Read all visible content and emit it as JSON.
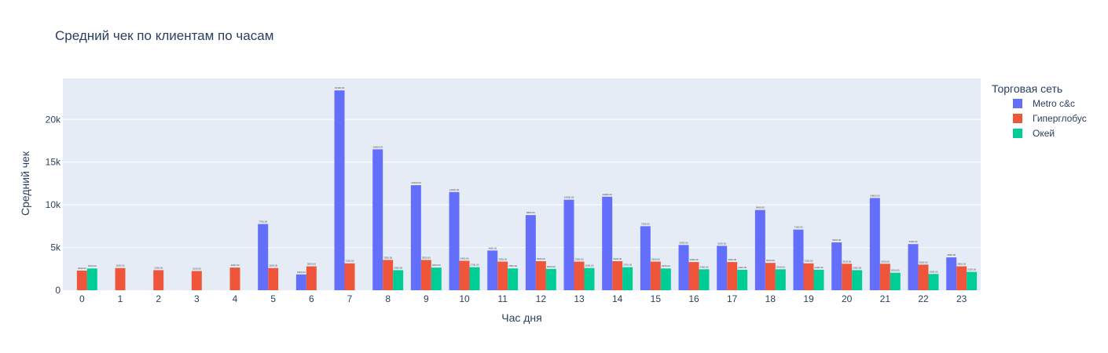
{
  "chart_data": {
    "type": "bar",
    "title": "Средний чек по клиентам по часам",
    "xlabel": "Час дня",
    "ylabel": "Средний чек",
    "ylim": [
      0,
      24800
    ],
    "y_ticks": [
      0,
      5000,
      10000,
      15000,
      20000
    ],
    "y_tick_labels": [
      "0",
      "5k",
      "10k",
      "15k",
      "20k"
    ],
    "categories": [
      "0",
      "1",
      "2",
      "3",
      "4",
      "5",
      "6",
      "7",
      "8",
      "9",
      "10",
      "11",
      "12",
      "13",
      "14",
      "15",
      "16",
      "17",
      "18",
      "19",
      "20",
      "21",
      "22",
      "23"
    ],
    "legend_title": "Торговая сеть",
    "legend_position": "right",
    "grid": true,
    "series": [
      {
        "name": "Metro c&c",
        "color": "#636efa",
        "values": [
          null,
          null,
          null,
          null,
          null,
          7750,
          1850,
          23400,
          16500,
          12300,
          11500,
          4650,
          8800,
          10600,
          10950,
          7500,
          5300,
          5200,
          9400,
          7100,
          5600,
          10800,
          5400,
          3850
        ]
      },
      {
        "name": "Гиперглобус",
        "color": "#ef553b",
        "values": [
          2300,
          2600,
          2350,
          2250,
          2650,
          2600,
          2800,
          3150,
          3550,
          3550,
          3450,
          3350,
          3400,
          3350,
          3400,
          3350,
          3300,
          3300,
          3200,
          3150,
          3100,
          3100,
          3000,
          2800
        ]
      },
      {
        "name": "Окей",
        "color": "#00cc96",
        "values": [
          2550,
          null,
          null,
          null,
          null,
          null,
          null,
          null,
          2350,
          2650,
          2700,
          2550,
          2500,
          2600,
          2700,
          2550,
          2450,
          2400,
          2450,
          2400,
          2350,
          2050,
          1900,
          2150
        ]
      }
    ]
  }
}
